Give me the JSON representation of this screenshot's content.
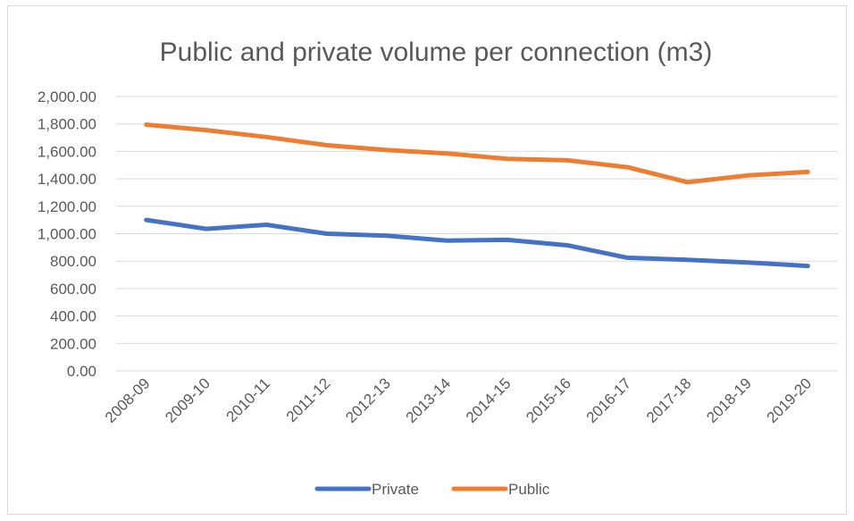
{
  "chart_data": {
    "type": "line",
    "title": "Public and private volume per connection (m3)",
    "xlabel": "",
    "ylabel": "",
    "categories": [
      "2008-09",
      "2009-10",
      "2010-11",
      "2011-12",
      "2012-13",
      "2013-14",
      "2014-15",
      "2015-16",
      "2016-17",
      "2017-18",
      "2018-19",
      "2019-20"
    ],
    "yticks": [
      "0.00",
      "200.00",
      "400.00",
      "600.00",
      "800.00",
      "1,000.00",
      "1,200.00",
      "1,400.00",
      "1,600.00",
      "1,800.00",
      "2,000.00"
    ],
    "ylim": [
      0,
      2000
    ],
    "grid": true,
    "legend": "bottom",
    "series": [
      {
        "name": "Private",
        "color": "#4472c4",
        "values": [
          1100,
          1035,
          1065,
          1000,
          985,
          950,
          955,
          915,
          825,
          810,
          790,
          765
        ]
      },
      {
        "name": "Public",
        "color": "#ed7d31",
        "values": [
          1795,
          1755,
          1705,
          1645,
          1610,
          1585,
          1545,
          1535,
          1485,
          1375,
          1425,
          1450
        ]
      }
    ]
  }
}
